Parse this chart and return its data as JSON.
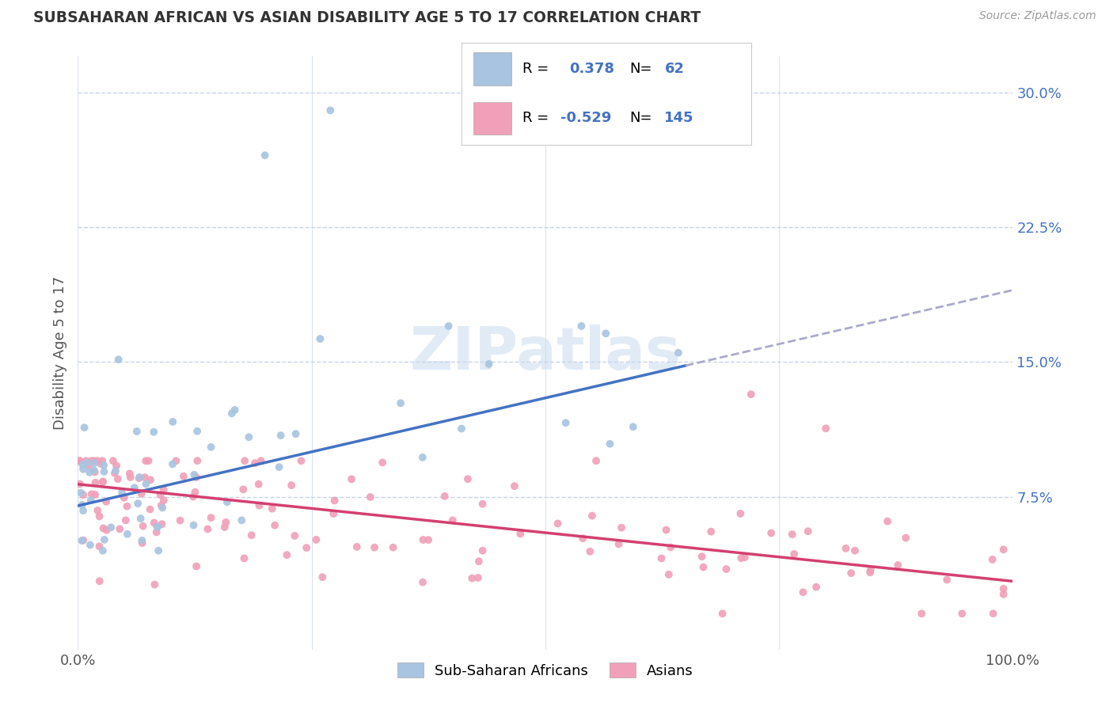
{
  "title": "SUBSAHARAN AFRICAN VS ASIAN DISABILITY AGE 5 TO 17 CORRELATION CHART",
  "source": "Source: ZipAtlas.com",
  "ylabel": "Disability Age 5 to 17",
  "xlim": [
    0,
    100
  ],
  "ylim": [
    -1,
    32
  ],
  "yticks": [
    7.5,
    15.0,
    22.5,
    30.0
  ],
  "ytick_labels": [
    "7.5%",
    "15.0%",
    "22.5%",
    "30.0%"
  ],
  "xtick_labels": [
    "0.0%",
    "100.0%"
  ],
  "blue_R": 0.378,
  "blue_N": 62,
  "pink_R": -0.529,
  "pink_N": 145,
  "blue_color": "#a8c4e0",
  "pink_color": "#f0a0b8",
  "blue_line_color": "#4472C4",
  "pink_line_color": "#d44070",
  "dash_line_color": "#aaaacc",
  "legend_label_blue": "Sub-Saharan Africans",
  "legend_label_pink": "Asians",
  "watermark": "ZIPatlas",
  "background_color": "#ffffff",
  "grid_color": "#c8d4e8",
  "title_color": "#333333",
  "axis_label_color": "#555555",
  "ytick_color": "#4472C4",
  "blue_line_end_x": 65,
  "blue_line_start_y": 7.0,
  "blue_line_end_y": 14.8,
  "pink_line_start_y": 8.2,
  "pink_line_end_y": 2.8
}
